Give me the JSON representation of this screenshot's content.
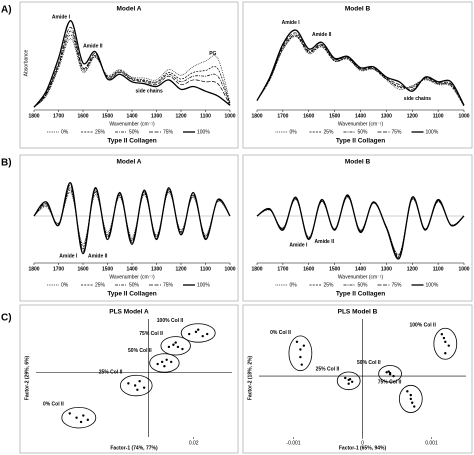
{
  "panel_labels": [
    "A)",
    "B)",
    "C)"
  ],
  "chart_data": [
    {
      "type": "line",
      "title": "Model A",
      "ylabel": "Absorbance",
      "xlabel": "Wavenumber (cm⁻¹)",
      "subtitle": "Type II Collagen",
      "annotations": [
        "Amide I",
        "Amide II",
        "side chains",
        "PG"
      ],
      "x": [
        1800,
        1750,
        1700,
        1650,
        1600,
        1550,
        1500,
        1450,
        1400,
        1350,
        1300,
        1250,
        1200,
        1150,
        1100,
        1050,
        1000
      ],
      "xlim": [
        1800,
        1000
      ],
      "xticks": [
        1800,
        1700,
        1600,
        1500,
        1400,
        1300,
        1200,
        1100,
        1000
      ],
      "ylim": [
        0,
        1
      ],
      "series": [
        {
          "name": "0%",
          "style": "dotted",
          "color": "#000",
          "values": [
            0.03,
            0.15,
            0.44,
            0.76,
            0.4,
            0.56,
            0.37,
            0.43,
            0.35,
            0.34,
            0.32,
            0.43,
            0.37,
            0.46,
            0.52,
            0.55,
            0.08
          ]
        },
        {
          "name": "25%",
          "style": "dashed",
          "color": "#000",
          "values": [
            0.03,
            0.16,
            0.46,
            0.8,
            0.42,
            0.57,
            0.36,
            0.42,
            0.34,
            0.32,
            0.3,
            0.4,
            0.33,
            0.4,
            0.42,
            0.44,
            0.07
          ]
        },
        {
          "name": "50%",
          "style": "dash-dot",
          "color": "#000",
          "values": [
            0.03,
            0.17,
            0.48,
            0.84,
            0.44,
            0.58,
            0.35,
            0.41,
            0.33,
            0.31,
            0.29,
            0.38,
            0.3,
            0.36,
            0.36,
            0.36,
            0.06
          ]
        },
        {
          "name": "75%",
          "style": "long-dash",
          "color": "#000",
          "values": [
            0.03,
            0.18,
            0.5,
            0.88,
            0.45,
            0.6,
            0.34,
            0.4,
            0.32,
            0.3,
            0.27,
            0.36,
            0.27,
            0.32,
            0.3,
            0.28,
            0.05
          ]
        },
        {
          "name": "100%",
          "style": "solid",
          "color": "#000",
          "values": [
            0.03,
            0.2,
            0.55,
            0.95,
            0.5,
            0.62,
            0.33,
            0.38,
            0.3,
            0.28,
            0.25,
            0.32,
            0.22,
            0.25,
            0.2,
            0.15,
            0.05
          ]
        }
      ]
    },
    {
      "type": "line",
      "title": "Model B",
      "xlabel": "Wavenumber (cm⁻¹)",
      "subtitle": "Type II Collagen",
      "annotations": [
        "Amide I",
        "Amide II",
        "side chains"
      ],
      "x": [
        1800,
        1750,
        1700,
        1650,
        1600,
        1550,
        1500,
        1450,
        1400,
        1350,
        1300,
        1250,
        1200,
        1150,
        1100,
        1050,
        1000
      ],
      "xlim": [
        1800,
        1000
      ],
      "xticks": [
        1800,
        1700,
        1600,
        1500,
        1400,
        1300,
        1200,
        1100,
        1000
      ],
      "ylim": [
        0,
        1
      ],
      "series": [
        {
          "name": "0%",
          "style": "dotted",
          "color": "#000",
          "values": [
            0.1,
            0.32,
            0.64,
            0.78,
            0.6,
            0.67,
            0.52,
            0.54,
            0.42,
            0.43,
            0.32,
            0.22,
            0.26,
            0.32,
            0.27,
            0.25,
            0.04
          ]
        },
        {
          "name": "25%",
          "style": "dashed",
          "color": "#000",
          "values": [
            0.1,
            0.33,
            0.65,
            0.79,
            0.61,
            0.68,
            0.52,
            0.55,
            0.43,
            0.44,
            0.33,
            0.24,
            0.25,
            0.33,
            0.28,
            0.26,
            0.04
          ]
        },
        {
          "name": "50%",
          "style": "dash-dot",
          "color": "#000",
          "values": [
            0.1,
            0.33,
            0.66,
            0.8,
            0.62,
            0.69,
            0.53,
            0.55,
            0.43,
            0.44,
            0.33,
            0.25,
            0.24,
            0.33,
            0.28,
            0.27,
            0.05
          ]
        },
        {
          "name": "75%",
          "style": "long-dash",
          "color": "#000",
          "values": [
            0.1,
            0.34,
            0.68,
            0.82,
            0.63,
            0.7,
            0.54,
            0.56,
            0.44,
            0.45,
            0.34,
            0.27,
            0.22,
            0.34,
            0.29,
            0.28,
            0.05
          ]
        },
        {
          "name": "100%",
          "style": "solid",
          "color": "#000",
          "values": [
            0.1,
            0.35,
            0.7,
            0.85,
            0.65,
            0.72,
            0.55,
            0.57,
            0.45,
            0.46,
            0.35,
            0.3,
            0.2,
            0.35,
            0.3,
            0.3,
            0.05
          ]
        }
      ]
    },
    {
      "type": "line",
      "title": "Model A",
      "xlabel": "Wavenumber (cm⁻¹)",
      "subtitle": "Type II Collagen",
      "annotations": [
        "Amide I",
        "Amide II"
      ],
      "x": [
        1800,
        1750,
        1700,
        1650,
        1600,
        1550,
        1500,
        1450,
        1400,
        1350,
        1300,
        1250,
        1200,
        1150,
        1100,
        1050,
        1000
      ],
      "xlim": [
        1800,
        1000
      ],
      "xticks": [
        1800,
        1700,
        1600,
        1500,
        1400,
        1300,
        1200,
        1100,
        1000
      ],
      "ylim": [
        -1,
        1
      ],
      "series": [
        {
          "name": "0%",
          "style": "dotted",
          "color": "#000",
          "values": [
            0,
            0.2,
            -0.15,
            0.5,
            -0.6,
            0.45,
            -0.35,
            0.4,
            -0.45,
            0.45,
            -0.4,
            0.5,
            -0.3,
            0.4,
            -0.4,
            0.3,
            0
          ]
        },
        {
          "name": "25%",
          "style": "dashed",
          "color": "#000",
          "values": [
            0,
            0.22,
            -0.16,
            0.55,
            -0.65,
            0.5,
            -0.4,
            0.43,
            -0.5,
            0.48,
            -0.43,
            0.53,
            -0.33,
            0.43,
            -0.43,
            0.32,
            0
          ]
        },
        {
          "name": "50%",
          "style": "dash-dot",
          "color": "#000",
          "values": [
            0,
            0.25,
            -0.18,
            0.6,
            -0.7,
            0.53,
            -0.43,
            0.45,
            -0.53,
            0.5,
            -0.45,
            0.55,
            -0.35,
            0.45,
            -0.45,
            0.33,
            0
          ]
        },
        {
          "name": "75%",
          "style": "long-dash",
          "color": "#000",
          "values": [
            0,
            0.27,
            -0.19,
            0.65,
            -0.75,
            0.57,
            -0.46,
            0.48,
            -0.56,
            0.52,
            -0.48,
            0.57,
            -0.38,
            0.48,
            -0.48,
            0.34,
            0
          ]
        },
        {
          "name": "100%",
          "style": "solid",
          "color": "#000",
          "values": [
            0,
            0.3,
            -0.2,
            0.7,
            -0.8,
            0.6,
            -0.5,
            0.5,
            -0.6,
            0.55,
            -0.5,
            0.6,
            -0.4,
            0.5,
            -0.5,
            0.35,
            0
          ]
        }
      ]
    },
    {
      "type": "line",
      "title": "Model B",
      "xlabel": "Wavenumber (cm⁻¹)",
      "subtitle": "Type II Collagen",
      "annotations": [
        "Amide I",
        "Amide II"
      ],
      "x": [
        1800,
        1750,
        1700,
        1650,
        1600,
        1550,
        1500,
        1450,
        1400,
        1350,
        1300,
        1250,
        1200,
        1150,
        1100,
        1050,
        1000
      ],
      "xlim": [
        1800,
        1000
      ],
      "xticks": [
        1800,
        1700,
        1600,
        1500,
        1400,
        1300,
        1200,
        1100,
        1000
      ],
      "ylim": [
        -1,
        1
      ],
      "series": [
        {
          "name": "0%",
          "style": "dotted",
          "color": "#000",
          "values": [
            0,
            0.12,
            -0.25,
            0.35,
            -0.45,
            0.3,
            -0.27,
            0.4,
            -0.3,
            0.27,
            -0.22,
            -0.8,
            0.35,
            -0.27,
            0.3,
            -0.18,
            0
          ]
        },
        {
          "name": "25%",
          "style": "dashed",
          "color": "#000",
          "values": [
            0,
            0.13,
            -0.26,
            0.36,
            -0.46,
            0.31,
            -0.28,
            0.41,
            -0.31,
            0.28,
            -0.23,
            -0.82,
            0.36,
            -0.28,
            0.31,
            -0.19,
            0
          ]
        },
        {
          "name": "50%",
          "style": "dash-dot",
          "color": "#000",
          "values": [
            0,
            0.13,
            -0.27,
            0.37,
            -0.47,
            0.32,
            -0.28,
            0.42,
            -0.32,
            0.28,
            -0.23,
            -0.85,
            0.37,
            -0.28,
            0.32,
            -0.19,
            0
          ]
        },
        {
          "name": "75%",
          "style": "long-dash",
          "color": "#000",
          "values": [
            0,
            0.14,
            -0.28,
            0.38,
            -0.48,
            0.33,
            -0.29,
            0.43,
            -0.33,
            0.29,
            -0.24,
            -0.87,
            0.38,
            -0.29,
            0.33,
            -0.2,
            0
          ]
        },
        {
          "name": "100%",
          "style": "solid",
          "color": "#000",
          "values": [
            0,
            0.15,
            -0.3,
            0.4,
            -0.5,
            0.35,
            -0.3,
            0.45,
            -0.35,
            0.3,
            -0.25,
            -0.9,
            0.4,
            -0.3,
            0.35,
            -0.2,
            0
          ]
        }
      ]
    },
    {
      "type": "scatter",
      "title": "PLS Model A",
      "xlabel": "Factor-1 (74%, 77%)",
      "ylabel": "Factor-2 (29%, 6%)",
      "xlim": [
        -0.05,
        0.037
      ],
      "xticks": [
        0.02
      ],
      "ylim": [
        -0.03,
        0.025
      ],
      "series": [
        {
          "name": "0% Col II",
          "color": "#000",
          "x": [
            -0.035,
            -0.032,
            -0.029,
            -0.027,
            -0.03
          ],
          "y": [
            -0.019,
            -0.021,
            -0.02,
            -0.022,
            -0.023
          ]
        },
        {
          "name": "25% Col II",
          "color": "#000",
          "x": [
            -0.009,
            -0.006,
            -0.004,
            -0.002,
            -0.005
          ],
          "y": [
            -0.005,
            -0.006,
            -0.004,
            -0.007,
            -0.008
          ]
        },
        {
          "name": "50% Col II",
          "color": "#000",
          "x": [
            0.004,
            0.006,
            0.008,
            0.01,
            0.007
          ],
          "y": [
            0.004,
            0.005,
            0.006,
            0.005,
            0.003
          ]
        },
        {
          "name": "75% Col II",
          "color": "#000",
          "x": [
            0.009,
            0.011,
            0.013,
            0.015,
            0.012
          ],
          "y": [
            0.012,
            0.013,
            0.012,
            0.011,
            0.014
          ]
        },
        {
          "name": "100% Col II",
          "color": "#000",
          "x": [
            0.018,
            0.021,
            0.024,
            0.026,
            0.022
          ],
          "y": [
            0.018,
            0.019,
            0.017,
            0.018,
            0.02
          ]
        }
      ]
    },
    {
      "type": "scatter",
      "title": "PLS Model B",
      "xlabel": "Factor-1 (65%, 94%)",
      "ylabel": "Factor-2 (18%, 2%)",
      "xlim": [
        -0.0015,
        0.0015
      ],
      "xticks": [
        -0.001,
        0,
        0.001
      ],
      "ylim": [
        -0.0016,
        0.0015
      ],
      "series": [
        {
          "name": "0% Col II",
          "color": "#000",
          "x": [
            -0.00095,
            -0.0009,
            -0.00085,
            -0.0009,
            -0.00088
          ],
          "y": [
            0.0009,
            0.0007,
            0.0008,
            0.0005,
            0.0003
          ]
        },
        {
          "name": "25% Col II",
          "color": "#000",
          "x": [
            -0.00025,
            -0.0002,
            -0.00015,
            -0.0002,
            -0.00018
          ],
          "y": [
            -5e-05,
            -0.0001,
            -0.00015,
            -0.0002,
            -8e-05
          ]
        },
        {
          "name": "50% Col II",
          "color": "#000",
          "x": [
            0.00035,
            0.0004,
            0.00045,
            0.0004,
            0.00038
          ],
          "y": [
            0.0001,
            5e-05,
            0.0,
            8e-05,
            0.00012
          ]
        },
        {
          "name": "75% Col II",
          "color": "#000",
          "x": [
            0.00065,
            0.0007,
            0.00075,
            0.0007,
            0.00072
          ],
          "y": [
            -0.0004,
            -0.0006,
            -0.0008,
            -0.0005,
            -0.0007
          ]
        },
        {
          "name": "100% Col II",
          "color": "#000",
          "x": [
            0.00115,
            0.0012,
            0.00125,
            0.0012,
            0.00118
          ],
          "y": [
            0.0011,
            0.0009,
            0.0008,
            0.0006,
            0.001
          ]
        }
      ]
    }
  ]
}
